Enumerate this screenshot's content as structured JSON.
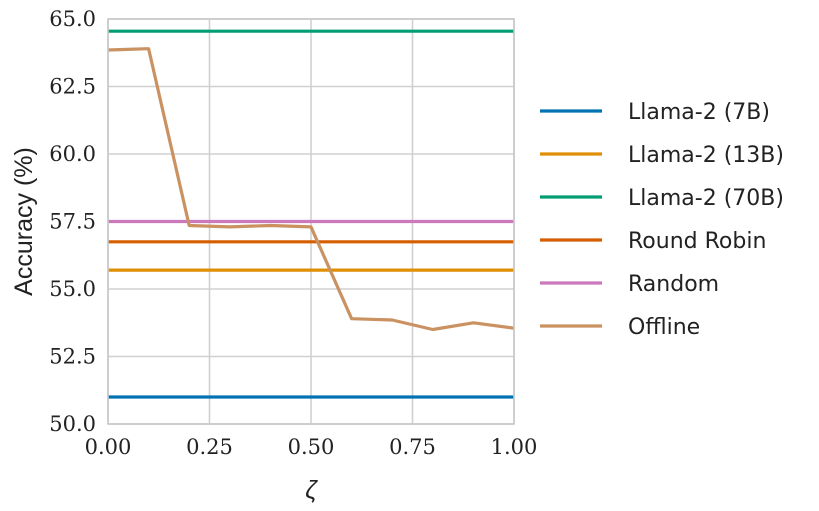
{
  "chart_data": {
    "type": "line",
    "xlabel": "ζ",
    "ylabel": "Accuracy (%)",
    "xlim": [
      0.0,
      1.0
    ],
    "ylim": [
      50.0,
      65.0
    ],
    "xticks": [
      "0.00",
      "0.25",
      "0.50",
      "0.75",
      "1.00"
    ],
    "yticks": [
      "50.0",
      "52.5",
      "55.0",
      "57.5",
      "60.0",
      "62.5",
      "65.0"
    ],
    "grid": true,
    "legend_position": "right",
    "series": [
      {
        "name": "Llama-2 (7B)",
        "color": "#0173b2",
        "x": [
          0.0,
          1.0
        ],
        "values": [
          51.0,
          51.0
        ]
      },
      {
        "name": "Llama-2 (13B)",
        "color": "#de8f05",
        "x": [
          0.0,
          1.0
        ],
        "values": [
          55.7,
          55.7
        ]
      },
      {
        "name": "Llama-2 (70B)",
        "color": "#029e73",
        "x": [
          0.0,
          1.0
        ],
        "values": [
          64.55,
          64.55
        ]
      },
      {
        "name": "Round Robin",
        "color": "#d55e00",
        "x": [
          0.0,
          1.0
        ],
        "values": [
          56.75,
          56.75
        ]
      },
      {
        "name": "Random",
        "color": "#cc78bc",
        "x": [
          0.0,
          1.0
        ],
        "values": [
          57.5,
          57.5
        ]
      },
      {
        "name": "Offline",
        "color": "#ca9161",
        "x": [
          0.0,
          0.1,
          0.2,
          0.3,
          0.4,
          0.5,
          0.6,
          0.7,
          0.8,
          0.9,
          1.0
        ],
        "values": [
          63.85,
          63.9,
          57.35,
          57.3,
          57.35,
          57.3,
          53.9,
          53.85,
          53.5,
          53.75,
          53.55
        ]
      }
    ]
  }
}
